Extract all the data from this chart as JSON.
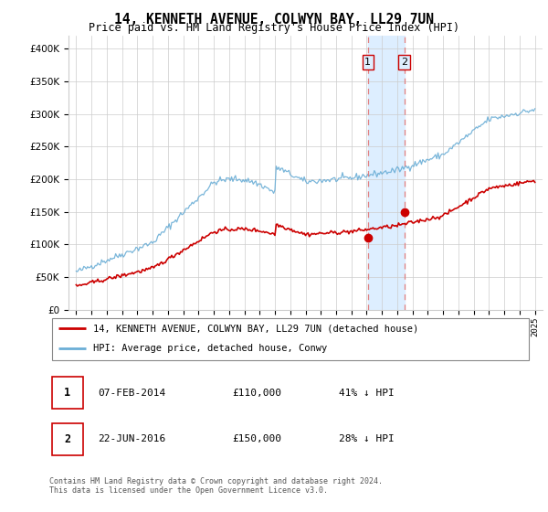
{
  "title": "14, KENNETH AVENUE, COLWYN BAY, LL29 7UN",
  "subtitle": "Price paid vs. HM Land Registry's House Price Index (HPI)",
  "legend_property": "14, KENNETH AVENUE, COLWYN BAY, LL29 7UN (detached house)",
  "legend_hpi": "HPI: Average price, detached house, Conwy",
  "sale1_label": "1",
  "sale1_date": "07-FEB-2014",
  "sale1_price": 110000,
  "sale1_text": "41% ↓ HPI",
  "sale2_label": "2",
  "sale2_date": "22-JUN-2016",
  "sale2_price": 150000,
  "sale2_text": "28% ↓ HPI",
  "sale1_x": 2014.08,
  "sale2_x": 2016.47,
  "ylim": [
    0,
    420000
  ],
  "yticks": [
    0,
    50000,
    100000,
    150000,
    200000,
    250000,
    300000,
    350000,
    400000
  ],
  "footer": "Contains HM Land Registry data © Crown copyright and database right 2024.\nThis data is licensed under the Open Government Licence v3.0.",
  "hpi_color": "#6baed6",
  "property_color": "#cc0000",
  "highlight_color": "#ddeeff",
  "background_color": "#ffffff",
  "grid_color": "#cccccc"
}
